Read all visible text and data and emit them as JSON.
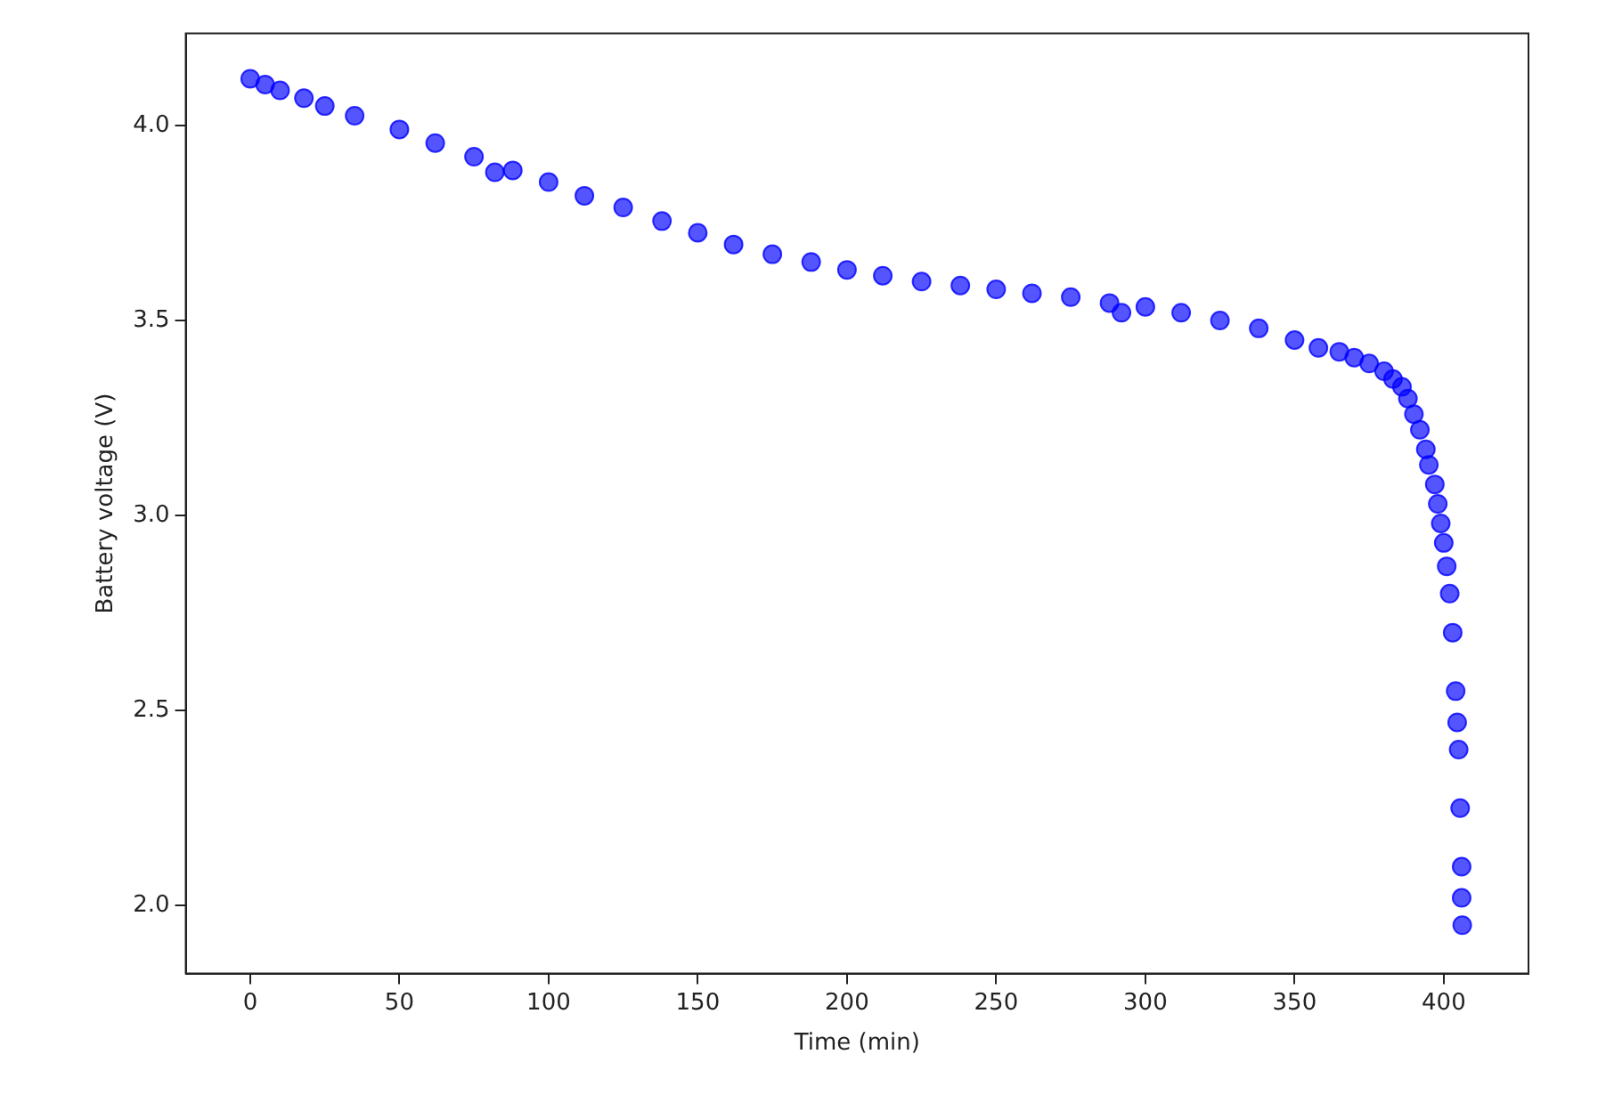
{
  "chart_data": {
    "type": "scatter",
    "xlabel": "Time (min)",
    "ylabel": "Battery voltage (V)",
    "marker": "circle",
    "grid": false,
    "legend": false,
    "xlim": [
      -21.6,
      428.4
    ],
    "xticks": [
      0,
      50,
      100,
      150,
      200,
      250,
      300,
      350,
      400
    ],
    "ylim": [
      1.826,
      4.236
    ],
    "yticks": [
      {
        "value": 2,
        "label": "2.0"
      },
      {
        "value": 2.5,
        "label": "2.5"
      },
      {
        "value": 3,
        "label": "3.0"
      },
      {
        "value": 3.5,
        "label": "3.5"
      },
      {
        "value": 4,
        "label": "4.0"
      }
    ],
    "series": [
      {
        "color": "#0000ff",
        "x": [
          0,
          5,
          10,
          18,
          25,
          35,
          50,
          62,
          75,
          82,
          88,
          100,
          112,
          125,
          138,
          150,
          162,
          175,
          188,
          200,
          212,
          225,
          238,
          250,
          262,
          275,
          288,
          292,
          300,
          312,
          325,
          338,
          350,
          358,
          365,
          370,
          375,
          380,
          383,
          386,
          388,
          390,
          392,
          394,
          395,
          397,
          398,
          399,
          400,
          401,
          402,
          403,
          404,
          404.5,
          405,
          405.5,
          406,
          406,
          406.2
        ],
        "values": [
          4.12,
          4.105,
          4.09,
          4.07,
          4.05,
          4.025,
          3.99,
          3.955,
          3.92,
          3.88,
          3.885,
          3.855,
          3.82,
          3.79,
          3.755,
          3.725,
          3.695,
          3.67,
          3.65,
          3.63,
          3.615,
          3.6,
          3.59,
          3.58,
          3.57,
          3.56,
          3.545,
          3.52,
          3.535,
          3.52,
          3.5,
          3.48,
          3.45,
          3.43,
          3.42,
          3.405,
          3.39,
          3.37,
          3.35,
          3.33,
          3.3,
          3.26,
          3.22,
          3.17,
          3.13,
          3.08,
          3.03,
          2.98,
          2.93,
          2.87,
          2.8,
          2.7,
          2.55,
          2.47,
          2.4,
          2.25,
          2.1,
          2.02,
          1.95
        ]
      }
    ]
  }
}
